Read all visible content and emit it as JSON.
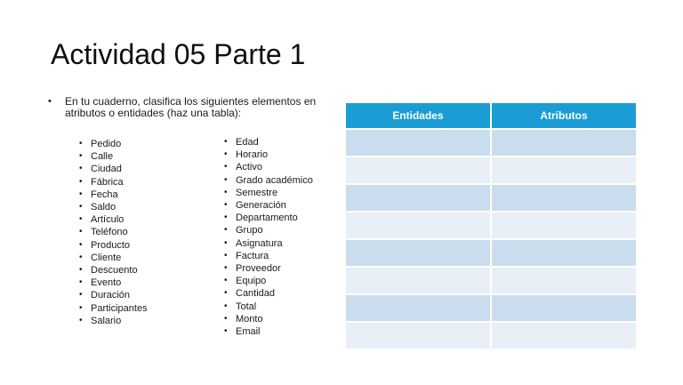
{
  "slide": {
    "title": "Actividad 05 Parte 1",
    "bullet_char": "•",
    "intro": "En tu cuaderno, clasifica los siguientes elementos en atributos o entidades (haz una tabla):",
    "list_col1": [
      "Pedido",
      "Calle",
      "Ciudad",
      "Fábrica",
      "Fecha",
      "Saldo",
      "Artículo",
      "Teléfono",
      "Producto",
      "Cliente",
      "Descuento",
      "Evento",
      "Duración",
      "Participantes",
      "Salario"
    ],
    "list_col2": [
      "Edad",
      "Horario",
      "Activo",
      "Grado académico",
      "Semestre",
      "Generación",
      "Departamento",
      "Grupo",
      "Asignatura",
      "Factura",
      "Proveedor",
      "Equipo",
      "Cantidad",
      "Total",
      "Monto",
      "Email"
    ],
    "table": {
      "headers": [
        "Entidades",
        "Atributos"
      ],
      "body_rows": 8,
      "colors": {
        "header_bg": "#1A9CD5",
        "header_text": "#FFFFFF",
        "row_odd_bg": "#C9DDEE",
        "row_even_bg": "#E8EFF6"
      }
    }
  }
}
